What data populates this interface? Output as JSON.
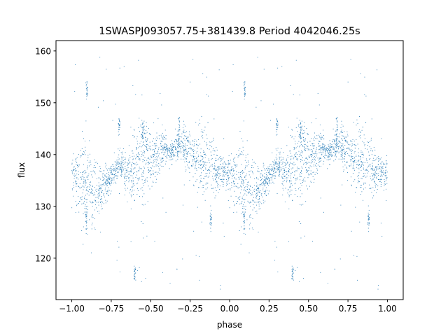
{
  "chart_data": {
    "type": "scatter",
    "title": "1SWASPJ093057.75+381439.8 Period 4042046.25s",
    "xlabel": "phase",
    "ylabel": "flux",
    "xlim": [
      -1.1,
      1.1
    ],
    "ylim": [
      112,
      162
    ],
    "xticks": [
      -1.0,
      -0.75,
      -0.5,
      -0.25,
      0.0,
      0.25,
      0.5,
      0.75,
      1.0
    ],
    "xtick_labels": [
      "−1.00",
      "−0.75",
      "−0.50",
      "−0.25",
      "0.00",
      "0.25",
      "0.50",
      "0.75",
      "1.00"
    ],
    "yticks": [
      120,
      130,
      140,
      150,
      160
    ],
    "ytick_labels": [
      "120",
      "130",
      "140",
      "150",
      "160"
    ],
    "grid": false,
    "point_color": "#1f77b4",
    "series": [
      {
        "trend": [
          [
            0.0,
            136.5
          ],
          [
            0.03,
            135.5
          ],
          [
            0.06,
            134.5
          ],
          [
            0.1,
            133.5
          ],
          [
            0.14,
            132.5
          ],
          [
            0.18,
            133.0
          ],
          [
            0.22,
            134.5
          ],
          [
            0.26,
            136.0
          ],
          [
            0.3,
            138.5
          ],
          [
            0.34,
            136.5
          ],
          [
            0.38,
            136.0
          ],
          [
            0.42,
            139.0
          ],
          [
            0.46,
            140.0
          ],
          [
            0.5,
            138.5
          ],
          [
            0.54,
            139.5
          ],
          [
            0.58,
            141.0
          ],
          [
            0.62,
            140.0
          ],
          [
            0.66,
            141.5
          ],
          [
            0.7,
            142.0
          ],
          [
            0.74,
            140.0
          ],
          [
            0.78,
            139.5
          ],
          [
            0.82,
            138.5
          ],
          [
            0.86,
            139.0
          ],
          [
            0.9,
            138.0
          ],
          [
            0.94,
            137.0
          ],
          [
            0.97,
            136.5
          ],
          [
            1.0,
            136.5
          ]
        ],
        "clumps": [
          [
            0.096,
            152.5,
            0.8
          ],
          [
            0.092,
            127.5,
            1.0
          ],
          [
            0.4,
            117.0,
            0.6
          ],
          [
            0.88,
            127.5,
            1.0
          ],
          [
            0.3,
            145.5,
            1.2
          ],
          [
            0.68,
            145.5,
            1.5
          ],
          [
            0.45,
            144.5,
            1.2
          ]
        ]
      }
    ]
  }
}
